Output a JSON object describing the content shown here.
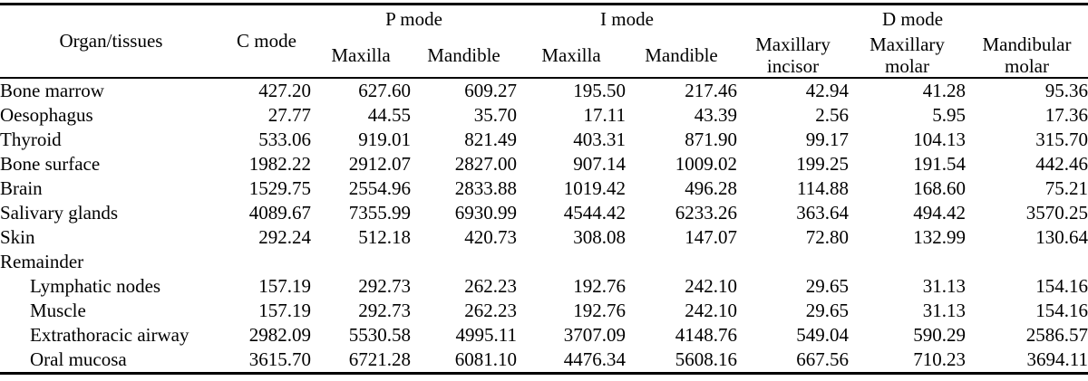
{
  "colors": {
    "background": "#ffffff",
    "text": "#000000",
    "rule": "#000000"
  },
  "table": {
    "organ_header": "Organ/tissues",
    "c_mode_header": "C mode",
    "groups": [
      {
        "label": "P mode",
        "span": 2
      },
      {
        "label": "I mode",
        "span": 2
      },
      {
        "label": "D mode",
        "span": 3
      }
    ],
    "sub_headers": [
      "Maxilla",
      "Mandible",
      "Maxilla",
      "Mandible",
      "Maxillary incisor",
      "Maxillary molar",
      "Mandibular molar"
    ],
    "rows": [
      {
        "label": "Bone marrow",
        "indent": false,
        "values": [
          "427.20",
          "627.60",
          "609.27",
          "195.50",
          "217.46",
          "42.94",
          "41.28",
          "95.36"
        ]
      },
      {
        "label": "Oesophagus",
        "indent": false,
        "values": [
          "27.77",
          "44.55",
          "35.70",
          "17.11",
          "43.39",
          "2.56",
          "5.95",
          "17.36"
        ]
      },
      {
        "label": "Thyroid",
        "indent": false,
        "values": [
          "533.06",
          "919.01",
          "821.49",
          "403.31",
          "871.90",
          "99.17",
          "104.13",
          "315.70"
        ]
      },
      {
        "label": "Bone surface",
        "indent": false,
        "values": [
          "1982.22",
          "2912.07",
          "2827.00",
          "907.14",
          "1009.02",
          "199.25",
          "191.54",
          "442.46"
        ]
      },
      {
        "label": "Brain",
        "indent": false,
        "values": [
          "1529.75",
          "2554.96",
          "2833.88",
          "1019.42",
          "496.28",
          "114.88",
          "168.60",
          "75.21"
        ]
      },
      {
        "label": "Salivary glands",
        "indent": false,
        "values": [
          "4089.67",
          "7355.99",
          "6930.99",
          "4544.42",
          "6233.26",
          "363.64",
          "494.42",
          "3570.25"
        ]
      },
      {
        "label": "Skin",
        "indent": false,
        "values": [
          "292.24",
          "512.18",
          "420.73",
          "308.08",
          "147.07",
          "72.80",
          "132.99",
          "130.64"
        ]
      },
      {
        "label": "Remainder",
        "indent": false,
        "values": []
      },
      {
        "label": "Lymphatic nodes",
        "indent": true,
        "values": [
          "157.19",
          "292.73",
          "262.23",
          "192.76",
          "242.10",
          "29.65",
          "31.13",
          "154.16"
        ]
      },
      {
        "label": "Muscle",
        "indent": true,
        "values": [
          "157.19",
          "292.73",
          "262.23",
          "192.76",
          "242.10",
          "29.65",
          "31.13",
          "154.16"
        ]
      },
      {
        "label": "Extrathoracic airway",
        "indent": true,
        "values": [
          "2982.09",
          "5530.58",
          "4995.11",
          "3707.09",
          "4148.76",
          "549.04",
          "590.29",
          "2586.57"
        ]
      },
      {
        "label": "Oral mucosa",
        "indent": true,
        "values": [
          "3615.70",
          "6721.28",
          "6081.10",
          "4476.34",
          "5608.16",
          "667.56",
          "710.23",
          "3694.11"
        ]
      }
    ]
  }
}
